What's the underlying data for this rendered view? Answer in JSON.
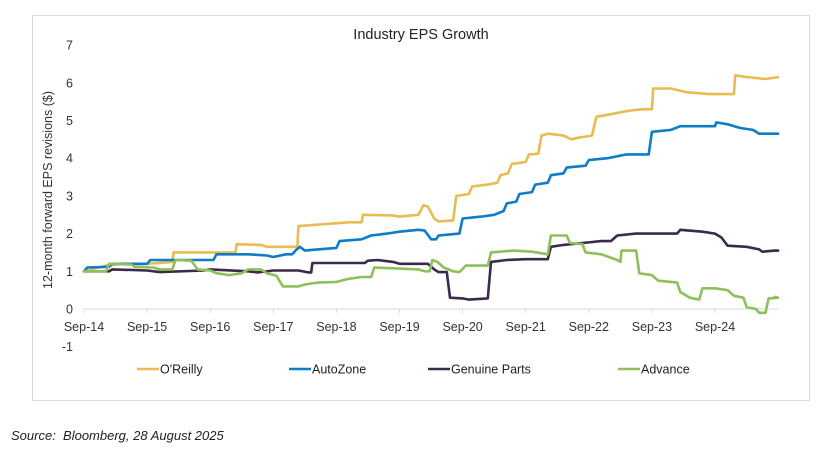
{
  "chart_data": {
    "type": "line",
    "title": "Industry EPS Growth",
    "xlabel": "",
    "ylabel": "12-month forward EPS revisions ($)",
    "x_unit": "years since Sep-2014",
    "x_tick_labels": [
      "Sep-14",
      "Sep-15",
      "Sep-16",
      "Sep-17",
      "Sep-18",
      "Sep-19",
      "Sep-20",
      "Sep-21",
      "Sep-22",
      "Sep-23",
      "Sep-24"
    ],
    "y_tick_labels": [
      "-1",
      "0",
      "1",
      "2",
      "3",
      "4",
      "5",
      "6",
      "7"
    ],
    "xlim": [
      0,
      11.0
    ],
    "ylim": [
      -1,
      7
    ],
    "grid": false,
    "legend_position": "bottom",
    "series": [
      {
        "name": "O'Reilly",
        "color": "#E8BC52",
        "points": [
          [
            0,
            1.0
          ],
          [
            0.35,
            1.15
          ],
          [
            0.6,
            1.2
          ],
          [
            1.0,
            1.2
          ],
          [
            1.4,
            1.25
          ],
          [
            1.42,
            1.5
          ],
          [
            2.0,
            1.5
          ],
          [
            2.4,
            1.5
          ],
          [
            2.42,
            1.72
          ],
          [
            2.8,
            1.7
          ],
          [
            2.9,
            1.65
          ],
          [
            3.38,
            1.65
          ],
          [
            3.4,
            2.2
          ],
          [
            3.8,
            2.25
          ],
          [
            4.2,
            2.3
          ],
          [
            4.4,
            2.3
          ],
          [
            4.42,
            2.5
          ],
          [
            4.9,
            2.48
          ],
          [
            5.0,
            2.45
          ],
          [
            5.3,
            2.5
          ],
          [
            5.38,
            2.75
          ],
          [
            5.45,
            2.72
          ],
          [
            5.55,
            2.4
          ],
          [
            5.62,
            2.32
          ],
          [
            5.85,
            2.35
          ],
          [
            5.9,
            3.0
          ],
          [
            6.1,
            3.05
          ],
          [
            6.15,
            3.25
          ],
          [
            6.4,
            3.3
          ],
          [
            6.55,
            3.35
          ],
          [
            6.6,
            3.55
          ],
          [
            6.72,
            3.6
          ],
          [
            6.78,
            3.85
          ],
          [
            7.0,
            3.9
          ],
          [
            7.05,
            4.1
          ],
          [
            7.2,
            4.12
          ],
          [
            7.25,
            4.6
          ],
          [
            7.35,
            4.65
          ],
          [
            7.6,
            4.6
          ],
          [
            7.72,
            4.5
          ],
          [
            7.85,
            4.55
          ],
          [
            8.05,
            4.6
          ],
          [
            8.12,
            5.1
          ],
          [
            8.3,
            5.15
          ],
          [
            8.6,
            5.25
          ],
          [
            8.85,
            5.3
          ],
          [
            9.0,
            5.3
          ],
          [
            9.02,
            5.85
          ],
          [
            9.3,
            5.85
          ],
          [
            9.55,
            5.75
          ],
          [
            9.9,
            5.7
          ],
          [
            10.3,
            5.7
          ],
          [
            10.32,
            6.2
          ],
          [
            10.5,
            6.15
          ],
          [
            10.8,
            6.1
          ],
          [
            11.0,
            6.15
          ]
        ]
      },
      {
        "name": "AutoZone",
        "color": "#0E7CC6",
        "points": [
          [
            0,
            1.0
          ],
          [
            0.05,
            1.1
          ],
          [
            0.4,
            1.12
          ],
          [
            0.45,
            1.2
          ],
          [
            0.9,
            1.2
          ],
          [
            1.0,
            1.2
          ],
          [
            1.05,
            1.3
          ],
          [
            1.5,
            1.3
          ],
          [
            2.05,
            1.3
          ],
          [
            2.1,
            1.45
          ],
          [
            2.6,
            1.45
          ],
          [
            2.9,
            1.42
          ],
          [
            3.0,
            1.38
          ],
          [
            3.2,
            1.45
          ],
          [
            3.3,
            1.45
          ],
          [
            3.35,
            1.55
          ],
          [
            3.42,
            1.65
          ],
          [
            3.5,
            1.55
          ],
          [
            3.7,
            1.58
          ],
          [
            4.0,
            1.62
          ],
          [
            4.05,
            1.8
          ],
          [
            4.4,
            1.85
          ],
          [
            4.55,
            1.95
          ],
          [
            4.8,
            2.0
          ],
          [
            5.0,
            2.05
          ],
          [
            5.3,
            2.1
          ],
          [
            5.4,
            2.08
          ],
          [
            5.5,
            1.85
          ],
          [
            5.58,
            1.85
          ],
          [
            5.62,
            1.95
          ],
          [
            5.95,
            2.0
          ],
          [
            6.0,
            2.4
          ],
          [
            6.3,
            2.45
          ],
          [
            6.5,
            2.5
          ],
          [
            6.65,
            2.6
          ],
          [
            6.7,
            2.8
          ],
          [
            6.85,
            2.85
          ],
          [
            6.9,
            3.05
          ],
          [
            7.1,
            3.1
          ],
          [
            7.15,
            3.3
          ],
          [
            7.35,
            3.35
          ],
          [
            7.4,
            3.55
          ],
          [
            7.6,
            3.6
          ],
          [
            7.65,
            3.75
          ],
          [
            7.95,
            3.8
          ],
          [
            8.0,
            3.95
          ],
          [
            8.3,
            4.0
          ],
          [
            8.6,
            4.1
          ],
          [
            8.95,
            4.1
          ],
          [
            9.0,
            4.7
          ],
          [
            9.3,
            4.75
          ],
          [
            9.45,
            4.85
          ],
          [
            9.7,
            4.85
          ],
          [
            10.0,
            4.85
          ],
          [
            10.02,
            4.95
          ],
          [
            10.2,
            4.9
          ],
          [
            10.4,
            4.8
          ],
          [
            10.6,
            4.75
          ],
          [
            10.7,
            4.65
          ],
          [
            11.0,
            4.65
          ]
        ]
      },
      {
        "name": "Genuine Parts",
        "color": "#3B2A4B",
        "points": [
          [
            0,
            1.0
          ],
          [
            0.4,
            1.0
          ],
          [
            0.45,
            1.05
          ],
          [
            1.0,
            1.02
          ],
          [
            1.2,
            0.98
          ],
          [
            1.9,
            1.02
          ],
          [
            2.0,
            1.05
          ],
          [
            2.6,
            1.0
          ],
          [
            2.75,
            0.97
          ],
          [
            3.0,
            1.02
          ],
          [
            3.4,
            1.02
          ],
          [
            3.55,
            0.97
          ],
          [
            3.6,
            0.97
          ],
          [
            3.62,
            1.22
          ],
          [
            4.2,
            1.22
          ],
          [
            4.45,
            1.22
          ],
          [
            4.5,
            1.28
          ],
          [
            4.65,
            1.3
          ],
          [
            4.9,
            1.25
          ],
          [
            5.0,
            1.2
          ],
          [
            5.45,
            1.2
          ],
          [
            5.55,
            1.05
          ],
          [
            5.62,
            0.98
          ],
          [
            5.75,
            0.98
          ],
          [
            5.8,
            0.3
          ],
          [
            6.0,
            0.28
          ],
          [
            6.1,
            0.25
          ],
          [
            6.4,
            0.28
          ],
          [
            6.45,
            1.25
          ],
          [
            6.7,
            1.3
          ],
          [
            7.0,
            1.32
          ],
          [
            7.35,
            1.32
          ],
          [
            7.4,
            1.65
          ],
          [
            7.6,
            1.7
          ],
          [
            7.9,
            1.75
          ],
          [
            8.2,
            1.8
          ],
          [
            8.35,
            1.8
          ],
          [
            8.45,
            1.95
          ],
          [
            8.75,
            2.0
          ],
          [
            9.4,
            2.0
          ],
          [
            9.45,
            2.1
          ],
          [
            9.8,
            2.05
          ],
          [
            10.0,
            2.0
          ],
          [
            10.1,
            1.9
          ],
          [
            10.2,
            1.68
          ],
          [
            10.5,
            1.65
          ],
          [
            10.7,
            1.58
          ],
          [
            10.75,
            1.52
          ],
          [
            10.95,
            1.55
          ],
          [
            11.0,
            1.55
          ]
        ]
      },
      {
        "name": "Advance",
        "color": "#8DC05A",
        "points": [
          [
            0,
            1.0
          ],
          [
            0.35,
            1.0
          ],
          [
            0.4,
            1.2
          ],
          [
            0.75,
            1.18
          ],
          [
            0.8,
            1.12
          ],
          [
            1.1,
            1.1
          ],
          [
            1.2,
            1.05
          ],
          [
            1.4,
            1.05
          ],
          [
            1.45,
            1.3
          ],
          [
            1.7,
            1.28
          ],
          [
            1.8,
            1.05
          ],
          [
            2.0,
            1.02
          ],
          [
            2.1,
            0.95
          ],
          [
            2.3,
            0.9
          ],
          [
            2.5,
            0.95
          ],
          [
            2.6,
            1.05
          ],
          [
            2.8,
            1.05
          ],
          [
            2.9,
            0.95
          ],
          [
            3.05,
            0.88
          ],
          [
            3.15,
            0.6
          ],
          [
            3.4,
            0.6
          ],
          [
            3.5,
            0.65
          ],
          [
            3.7,
            0.7
          ],
          [
            4.0,
            0.72
          ],
          [
            4.2,
            0.8
          ],
          [
            4.4,
            0.85
          ],
          [
            4.55,
            0.85
          ],
          [
            4.6,
            1.1
          ],
          [
            4.9,
            1.08
          ],
          [
            5.3,
            1.05
          ],
          [
            5.4,
            1.0
          ],
          [
            5.48,
            1.0
          ],
          [
            5.52,
            1.3
          ],
          [
            5.6,
            1.25
          ],
          [
            5.7,
            1.1
          ],
          [
            5.85,
            1.0
          ],
          [
            5.95,
            0.98
          ],
          [
            6.05,
            1.15
          ],
          [
            6.4,
            1.15
          ],
          [
            6.45,
            1.5
          ],
          [
            6.8,
            1.55
          ],
          [
            7.1,
            1.52
          ],
          [
            7.35,
            1.45
          ],
          [
            7.4,
            1.95
          ],
          [
            7.65,
            1.95
          ],
          [
            7.7,
            1.75
          ],
          [
            7.9,
            1.72
          ],
          [
            7.95,
            1.5
          ],
          [
            8.2,
            1.45
          ],
          [
            8.45,
            1.3
          ],
          [
            8.5,
            1.25
          ],
          [
            8.52,
            1.55
          ],
          [
            8.75,
            1.55
          ],
          [
            8.8,
            0.95
          ],
          [
            9.0,
            0.9
          ],
          [
            9.1,
            0.75
          ],
          [
            9.4,
            0.7
          ],
          [
            9.45,
            0.45
          ],
          [
            9.6,
            0.3
          ],
          [
            9.75,
            0.25
          ],
          [
            9.8,
            0.55
          ],
          [
            10.0,
            0.55
          ],
          [
            10.2,
            0.5
          ],
          [
            10.3,
            0.35
          ],
          [
            10.45,
            0.3
          ],
          [
            10.5,
            0.05
          ],
          [
            10.65,
            0.0
          ],
          [
            10.7,
            -0.1
          ],
          [
            10.8,
            -0.1
          ],
          [
            10.85,
            0.28
          ],
          [
            11.0,
            0.3
          ],
          [
            10.95,
            0.32
          ],
          [
            11.0,
            0.3
          ]
        ]
      }
    ]
  },
  "source_note": "Source:  Bloomberg, 28 August 2025"
}
